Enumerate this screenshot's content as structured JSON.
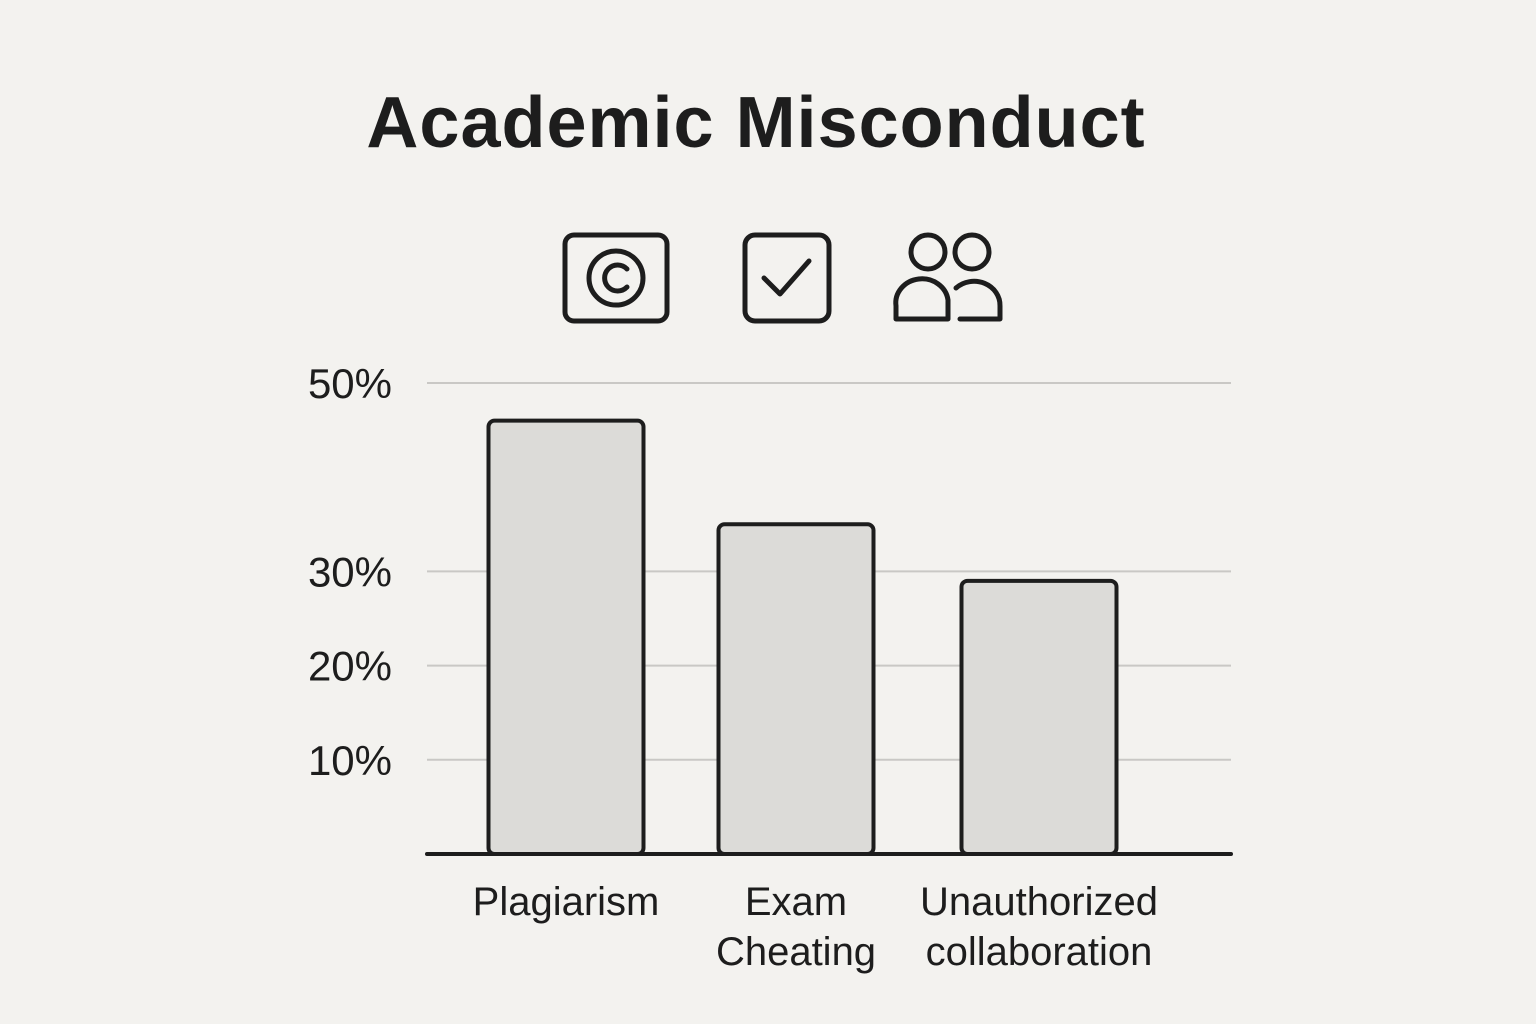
{
  "icons": [
    {
      "name": "copyright-icon"
    },
    {
      "name": "checkbox-icon"
    },
    {
      "name": "users-icon"
    }
  ],
  "colors": {
    "background": "#f3f2ef",
    "bar_fill": "#dcdbd8",
    "bar_stroke": "#1d1d1d",
    "grid": "#c9c8c5",
    "text": "#1d1d1d"
  },
  "chart_data": {
    "type": "bar",
    "title": "Academic Misconduct",
    "categories": [
      [
        "Plagiarism"
      ],
      [
        "Exam",
        "Cheating"
      ],
      [
        "Unauthorized",
        "collaboration"
      ]
    ],
    "values": [
      46,
      35,
      29
    ],
    "yticks": [
      {
        "value": 10,
        "label": "10%"
      },
      {
        "value": 20,
        "label": "20%"
      },
      {
        "value": 30,
        "label": "30%"
      },
      {
        "value": 50,
        "label": "50%"
      }
    ],
    "ylim": [
      0,
      50
    ],
    "grid": true,
    "legend": "none"
  }
}
